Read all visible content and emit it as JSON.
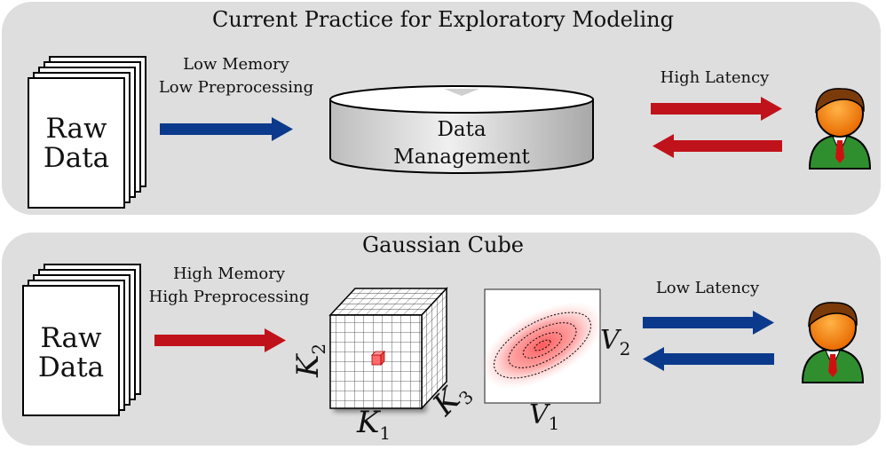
{
  "top": {
    "title": "Current Practice for Exploratory Modeling",
    "doc_label_line1": "Raw",
    "doc_label_line2": "Data",
    "arrow_label_line1": "Low Memory",
    "arrow_label_line2": "Low Preprocessing",
    "db_label_line1": "Data",
    "db_label_line2": "Management",
    "latency_label": "High Latency",
    "arrow_color": "#0b3a8c",
    "latency_color": "#c0121a"
  },
  "bottom": {
    "title": "Gaussian Cube",
    "doc_label_line1": "Raw",
    "doc_label_line2": "Data",
    "arrow_label_line1": "High Memory",
    "arrow_label_line2": "High Preprocessing",
    "cube_axis_k1": "K",
    "cube_axis_k1_sub": "1",
    "cube_axis_k2": "K",
    "cube_axis_k2_sub": "2",
    "cube_axis_k3": "K",
    "cube_axis_k3_sub": "3",
    "plot_axis_v1": "V",
    "plot_axis_v1_sub": "1",
    "plot_axis_v2": "V",
    "plot_axis_v2_sub": "2",
    "latency_label": "Low Latency",
    "arrow_color": "#c0121a",
    "latency_color": "#0b3a8c"
  },
  "icons": {
    "documents": "document-stack-icon",
    "database": "database-cylinder-icon",
    "user": "user-avatar-icon",
    "cube": "data-cube-icon",
    "gaussian": "gaussian-contour-icon"
  }
}
